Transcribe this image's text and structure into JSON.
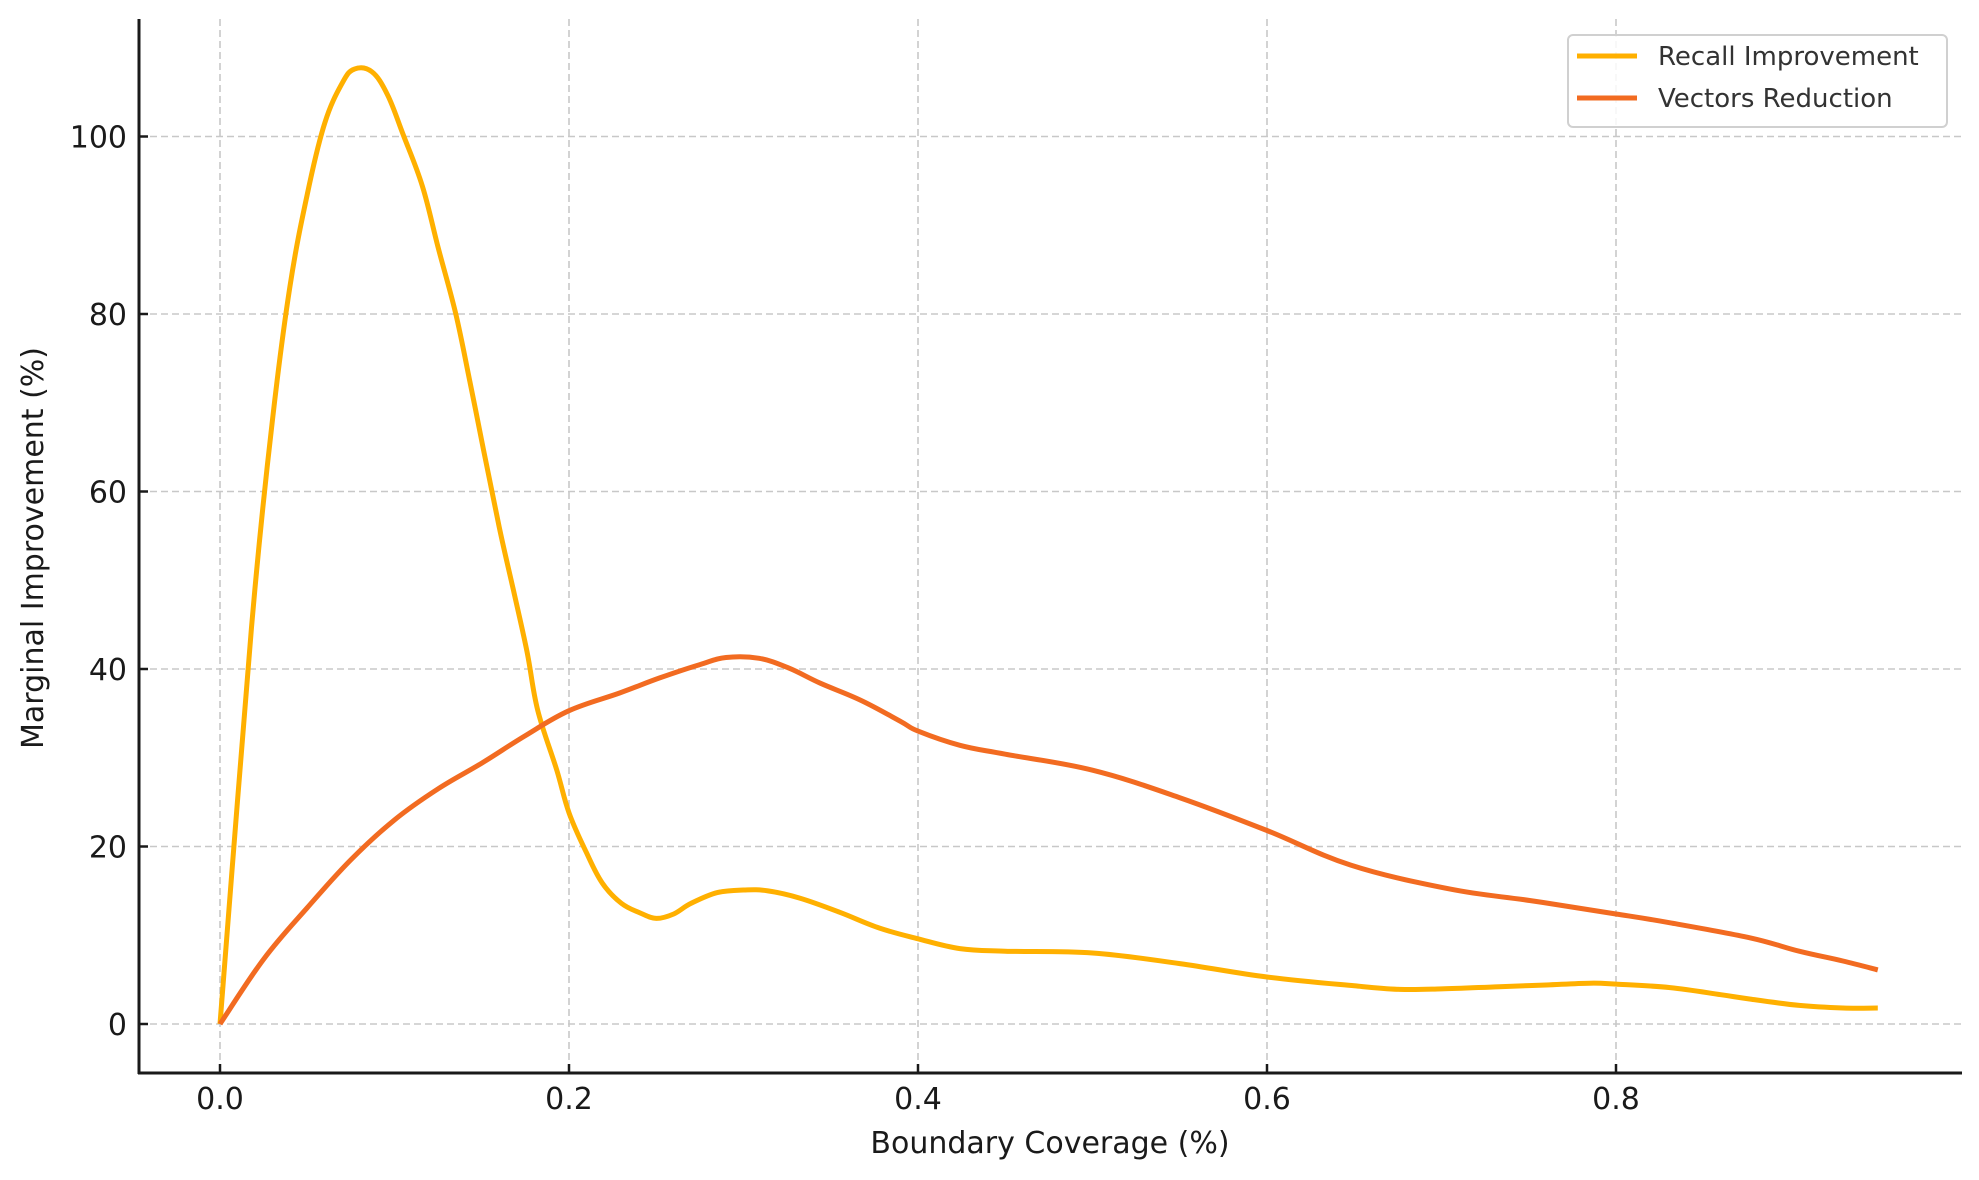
{
  "chart_data": {
    "type": "line",
    "title": "",
    "xlabel": "Boundary Coverage (%)",
    "ylabel": "Marginal Improvement (%)",
    "xlim": [
      -0.047,
      0.998
    ],
    "ylim": [
      -5.5,
      113.2
    ],
    "grid": true,
    "legend_position": "upper right",
    "x_ticks": [
      0.0,
      0.2,
      0.4,
      0.6,
      0.8
    ],
    "x_tick_labels": [
      "0.0",
      "0.2",
      "0.4",
      "0.6",
      "0.8"
    ],
    "y_ticks": [
      0,
      20,
      40,
      60,
      80,
      100
    ],
    "y_tick_labels": [
      "0",
      "20",
      "40",
      "60",
      "80",
      "100"
    ],
    "series": [
      {
        "name": "Recall Improvement",
        "color": "#FFB000",
        "x": [
          0.0,
          0.01,
          0.02,
          0.03,
          0.04,
          0.05,
          0.06,
          0.07,
          0.077,
          0.087,
          0.096,
          0.105,
          0.116,
          0.125,
          0.135,
          0.143,
          0.151,
          0.16,
          0.168,
          0.176,
          0.182,
          0.193,
          0.2,
          0.21,
          0.219,
          0.23,
          0.241,
          0.25,
          0.26,
          0.27,
          0.285,
          0.3,
          0.314,
          0.332,
          0.355,
          0.378,
          0.4,
          0.424,
          0.45,
          0.5,
          0.55,
          0.6,
          0.65,
          0.676,
          0.7,
          0.733,
          0.76,
          0.785,
          0.8,
          0.831,
          0.86,
          0.877,
          0.905,
          0.93,
          0.95
        ],
        "y": [
          0,
          25,
          49,
          68,
          83,
          93.5,
          101.5,
          106,
          107.6,
          107.3,
          104.7,
          100.2,
          94.4,
          87.5,
          80.1,
          72.6,
          64.7,
          56,
          49,
          41.9,
          35.4,
          28.6,
          23.8,
          19.3,
          15.9,
          13.6,
          12.5,
          11.9,
          12.4,
          13.6,
          14.8,
          15.1,
          15.0,
          14.2,
          12.6,
          10.8,
          9.6,
          8.5,
          8.2,
          8.0,
          6.8,
          5.3,
          4.3,
          3.9,
          3.95,
          4.2,
          4.4,
          4.6,
          4.5,
          4.1,
          3.3,
          2.8,
          2.1,
          1.8,
          1.8
        ]
      },
      {
        "name": "Vectors Reduction",
        "color": "#F26B21",
        "x": [
          0.0,
          0.025,
          0.05,
          0.075,
          0.1,
          0.125,
          0.15,
          0.175,
          0.2,
          0.229,
          0.252,
          0.275,
          0.29,
          0.309,
          0.326,
          0.344,
          0.367,
          0.39,
          0.4,
          0.424,
          0.45,
          0.5,
          0.55,
          0.6,
          0.648,
          0.705,
          0.751,
          0.8,
          0.831,
          0.877,
          0.905,
          0.93,
          0.95
        ],
        "y": [
          0,
          7.3,
          13.1,
          18.5,
          23.0,
          26.5,
          29.4,
          32.5,
          35.3,
          37.3,
          39.0,
          40.5,
          41.3,
          41.2,
          40.1,
          38.4,
          36.5,
          34.1,
          33.0,
          31.4,
          30.4,
          28.6,
          25.5,
          21.8,
          17.9,
          15.2,
          13.9,
          12.4,
          11.4,
          9.7,
          8.2,
          7.1,
          6.1
        ]
      }
    ]
  },
  "legend": {
    "items": [
      {
        "label": "Recall Improvement",
        "color": "#FFB000"
      },
      {
        "label": "Vectors Reduction",
        "color": "#F26B21"
      }
    ]
  },
  "axes": {
    "xlabel": "Boundary Coverage (%)",
    "ylabel": "Marginal Improvement (%)"
  }
}
